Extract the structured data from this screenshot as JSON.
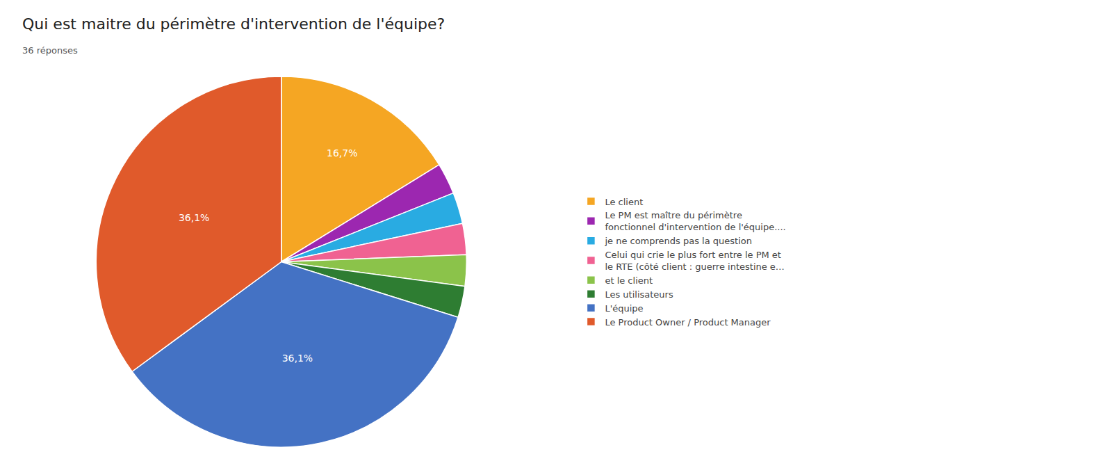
{
  "chart_data": {
    "type": "pie",
    "title": "Qui est maitre du périmètre d'intervention de l'équipe?",
    "subtitle": "36 réponses",
    "categories": [
      "Le client",
      "Le PM est maître du périmètre\nfonctionnel d'intervention de l'équipe....",
      "je ne comprends pas la question",
      "Celui qui crie le plus fort entre le PM et\nle RTE (côté client : guerre intestine e…",
      "et le client",
      "Les utilisateurs",
      "L'équipe",
      "Le Product Owner / Product Manager"
    ],
    "values": [
      16.7,
      2.8,
      2.8,
      2.8,
      2.8,
      2.8,
      36.1,
      36.1
    ],
    "value_labels": [
      "16,7%",
      null,
      null,
      null,
      null,
      null,
      "36,1%",
      "36,1%"
    ],
    "colors": [
      "#F5A623",
      "#9C27B0",
      "#29ABE2",
      "#F06292",
      "#8BC34A",
      "#2E7D32",
      "#4472C4",
      "#E05A2B"
    ],
    "data_labels": true,
    "legend": "right"
  }
}
